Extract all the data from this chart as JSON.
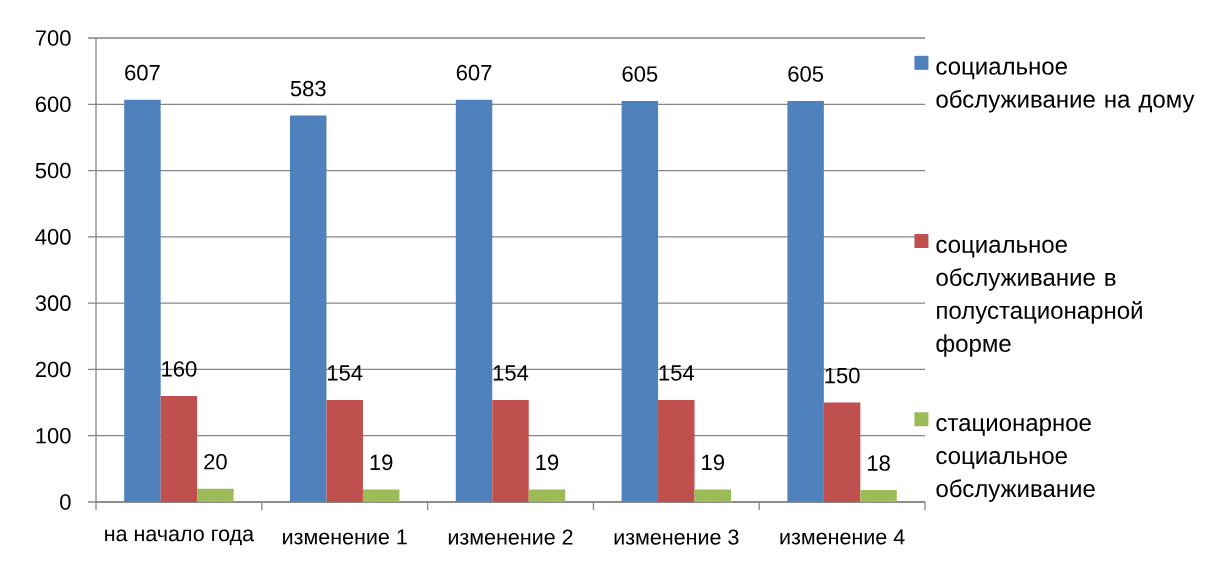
{
  "chart_data": {
    "type": "bar",
    "categories": [
      "на начало года",
      "изменение 1",
      "изменение 2",
      "изменение 3",
      "изменение  4"
    ],
    "series": [
      {
        "name": "социальное обслуживание на дому",
        "color": "#4f81bd",
        "values": [
          607,
          583,
          607,
          605,
          605
        ]
      },
      {
        "name": "социальное обслуживание в полустационарной форме",
        "color": "#c0504d",
        "values": [
          160,
          154,
          154,
          154,
          150
        ]
      },
      {
        "name": "стационарное социальное обслуживание",
        "color": "#9bbb59",
        "values": [
          20,
          19,
          19,
          19,
          18
        ]
      }
    ],
    "ylim": [
      0,
      700
    ],
    "yticks": [
      0,
      100,
      200,
      300,
      400,
      500,
      600,
      700
    ],
    "grid": "y",
    "data_labels": true,
    "legend": "right"
  }
}
